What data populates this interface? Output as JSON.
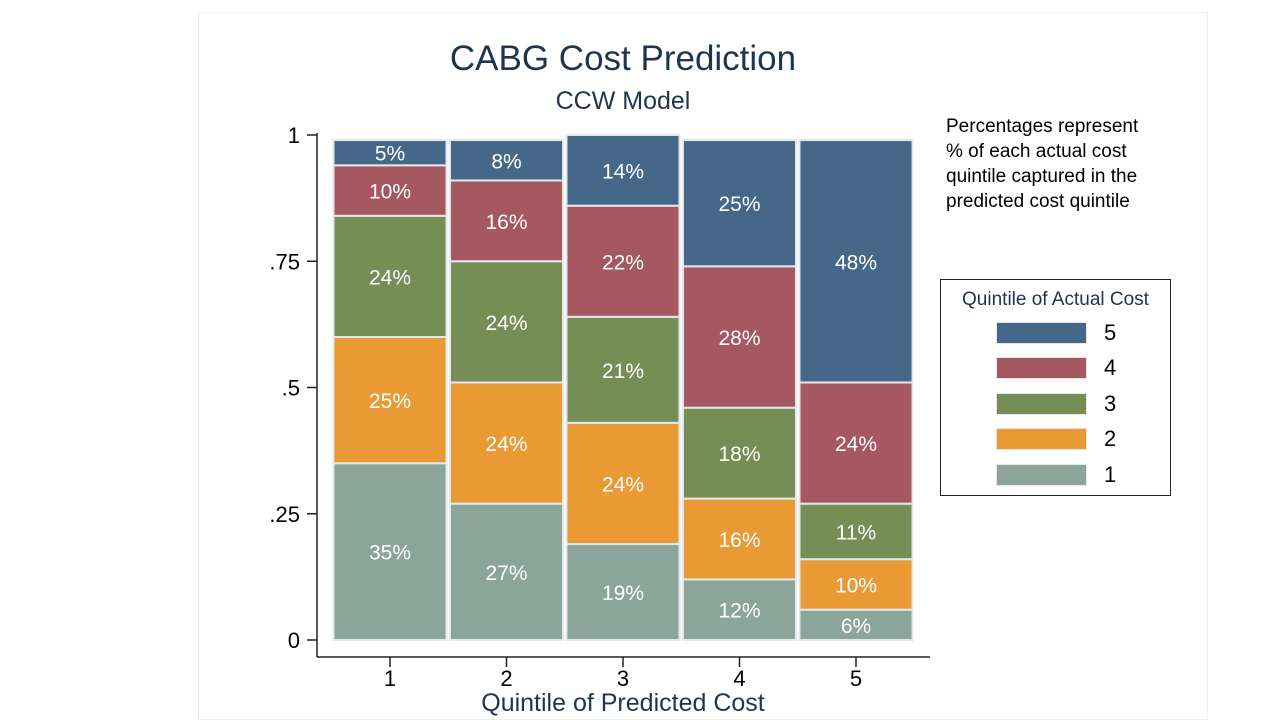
{
  "chart_data": {
    "type": "bar",
    "stacked": true,
    "title": "CABG Cost Prediction",
    "subtitle": "CCW Model",
    "xlabel": "Quintile of Predicted Cost",
    "categories": [
      "1",
      "2",
      "3",
      "4",
      "5"
    ],
    "y_ticks": [
      {
        "value": 0,
        "label": "0"
      },
      {
        "value": 0.25,
        "label": ".25"
      },
      {
        "value": 0.5,
        "label": ".5"
      },
      {
        "value": 0.75,
        "label": ".75"
      },
      {
        "value": 1,
        "label": "1"
      }
    ],
    "ylim": [
      0,
      1
    ],
    "series": [
      {
        "name": "1",
        "color": "#8ba59b",
        "values": [
          0.35,
          0.27,
          0.19,
          0.12,
          0.06
        ],
        "labels": [
          "35%",
          "27%",
          "19%",
          "12%",
          "6%"
        ]
      },
      {
        "name": "2",
        "color": "#e99a35",
        "values": [
          0.25,
          0.24,
          0.24,
          0.16,
          0.1
        ],
        "labels": [
          "25%",
          "24%",
          "24%",
          "16%",
          "10%"
        ]
      },
      {
        "name": "3",
        "color": "#768d55",
        "values": [
          0.24,
          0.24,
          0.21,
          0.18,
          0.11
        ],
        "labels": [
          "24%",
          "24%",
          "21%",
          "18%",
          "11%"
        ]
      },
      {
        "name": "4",
        "color": "#a5585f",
        "values": [
          0.1,
          0.16,
          0.22,
          0.28,
          0.24
        ],
        "labels": [
          "10%",
          "16%",
          "22%",
          "28%",
          "24%"
        ]
      },
      {
        "name": "5",
        "color": "#466888",
        "values": [
          0.05,
          0.08,
          0.14,
          0.25,
          0.48
        ],
        "labels": [
          "5%",
          "8%",
          "14%",
          "25%",
          "48%"
        ]
      }
    ],
    "legend": {
      "title": "Quintile of Actual Cost",
      "position": "right",
      "entries": [
        {
          "label": "5",
          "color": "#466888"
        },
        {
          "label": "4",
          "color": "#a5585f"
        },
        {
          "label": "3",
          "color": "#768d55"
        },
        {
          "label": "2",
          "color": "#e99a35"
        },
        {
          "label": "1",
          "color": "#8ba59b"
        }
      ]
    }
  },
  "note": {
    "lines": [
      "Percentages represent",
      "% of each actual cost",
      "quintile captured in the",
      "predicted cost quintile"
    ]
  }
}
